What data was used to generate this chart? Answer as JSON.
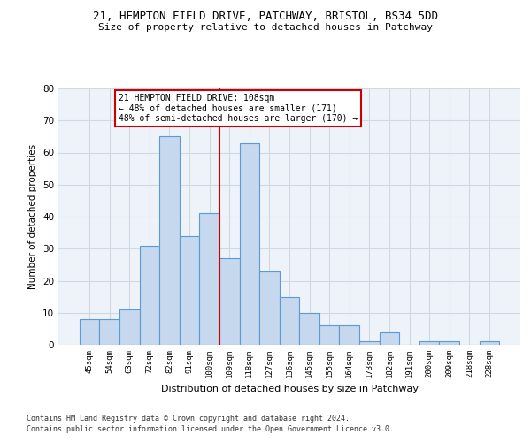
{
  "title1": "21, HEMPTON FIELD DRIVE, PATCHWAY, BRISTOL, BS34 5DD",
  "title2": "Size of property relative to detached houses in Patchway",
  "xlabel": "Distribution of detached houses by size in Patchway",
  "ylabel": "Number of detached properties",
  "footnote1": "Contains HM Land Registry data © Crown copyright and database right 2024.",
  "footnote2": "Contains public sector information licensed under the Open Government Licence v3.0.",
  "categories": [
    "45sqm",
    "54sqm",
    "63sqm",
    "72sqm",
    "82sqm",
    "91sqm",
    "100sqm",
    "109sqm",
    "118sqm",
    "127sqm",
    "136sqm",
    "145sqm",
    "155sqm",
    "164sqm",
    "173sqm",
    "182sqm",
    "191sqm",
    "200sqm",
    "209sqm",
    "218sqm",
    "228sqm"
  ],
  "values": [
    8,
    8,
    11,
    31,
    65,
    34,
    41,
    27,
    63,
    23,
    15,
    10,
    6,
    6,
    1,
    4,
    0,
    1,
    1,
    0,
    1
  ],
  "bar_color": "#c5d8ed",
  "bar_edge_color": "#5b9bd5",
  "grid_color": "#d0d8e4",
  "background_color": "#eef3f9",
  "vline_color": "#cc0000",
  "annotation_text": "21 HEMPTON FIELD DRIVE: 108sqm\n← 48% of detached houses are smaller (171)\n48% of semi-detached houses are larger (170) →",
  "annotation_box_color": "#cc0000",
  "ylim": [
    0,
    80
  ],
  "yticks": [
    0,
    10,
    20,
    30,
    40,
    50,
    60,
    70,
    80
  ]
}
